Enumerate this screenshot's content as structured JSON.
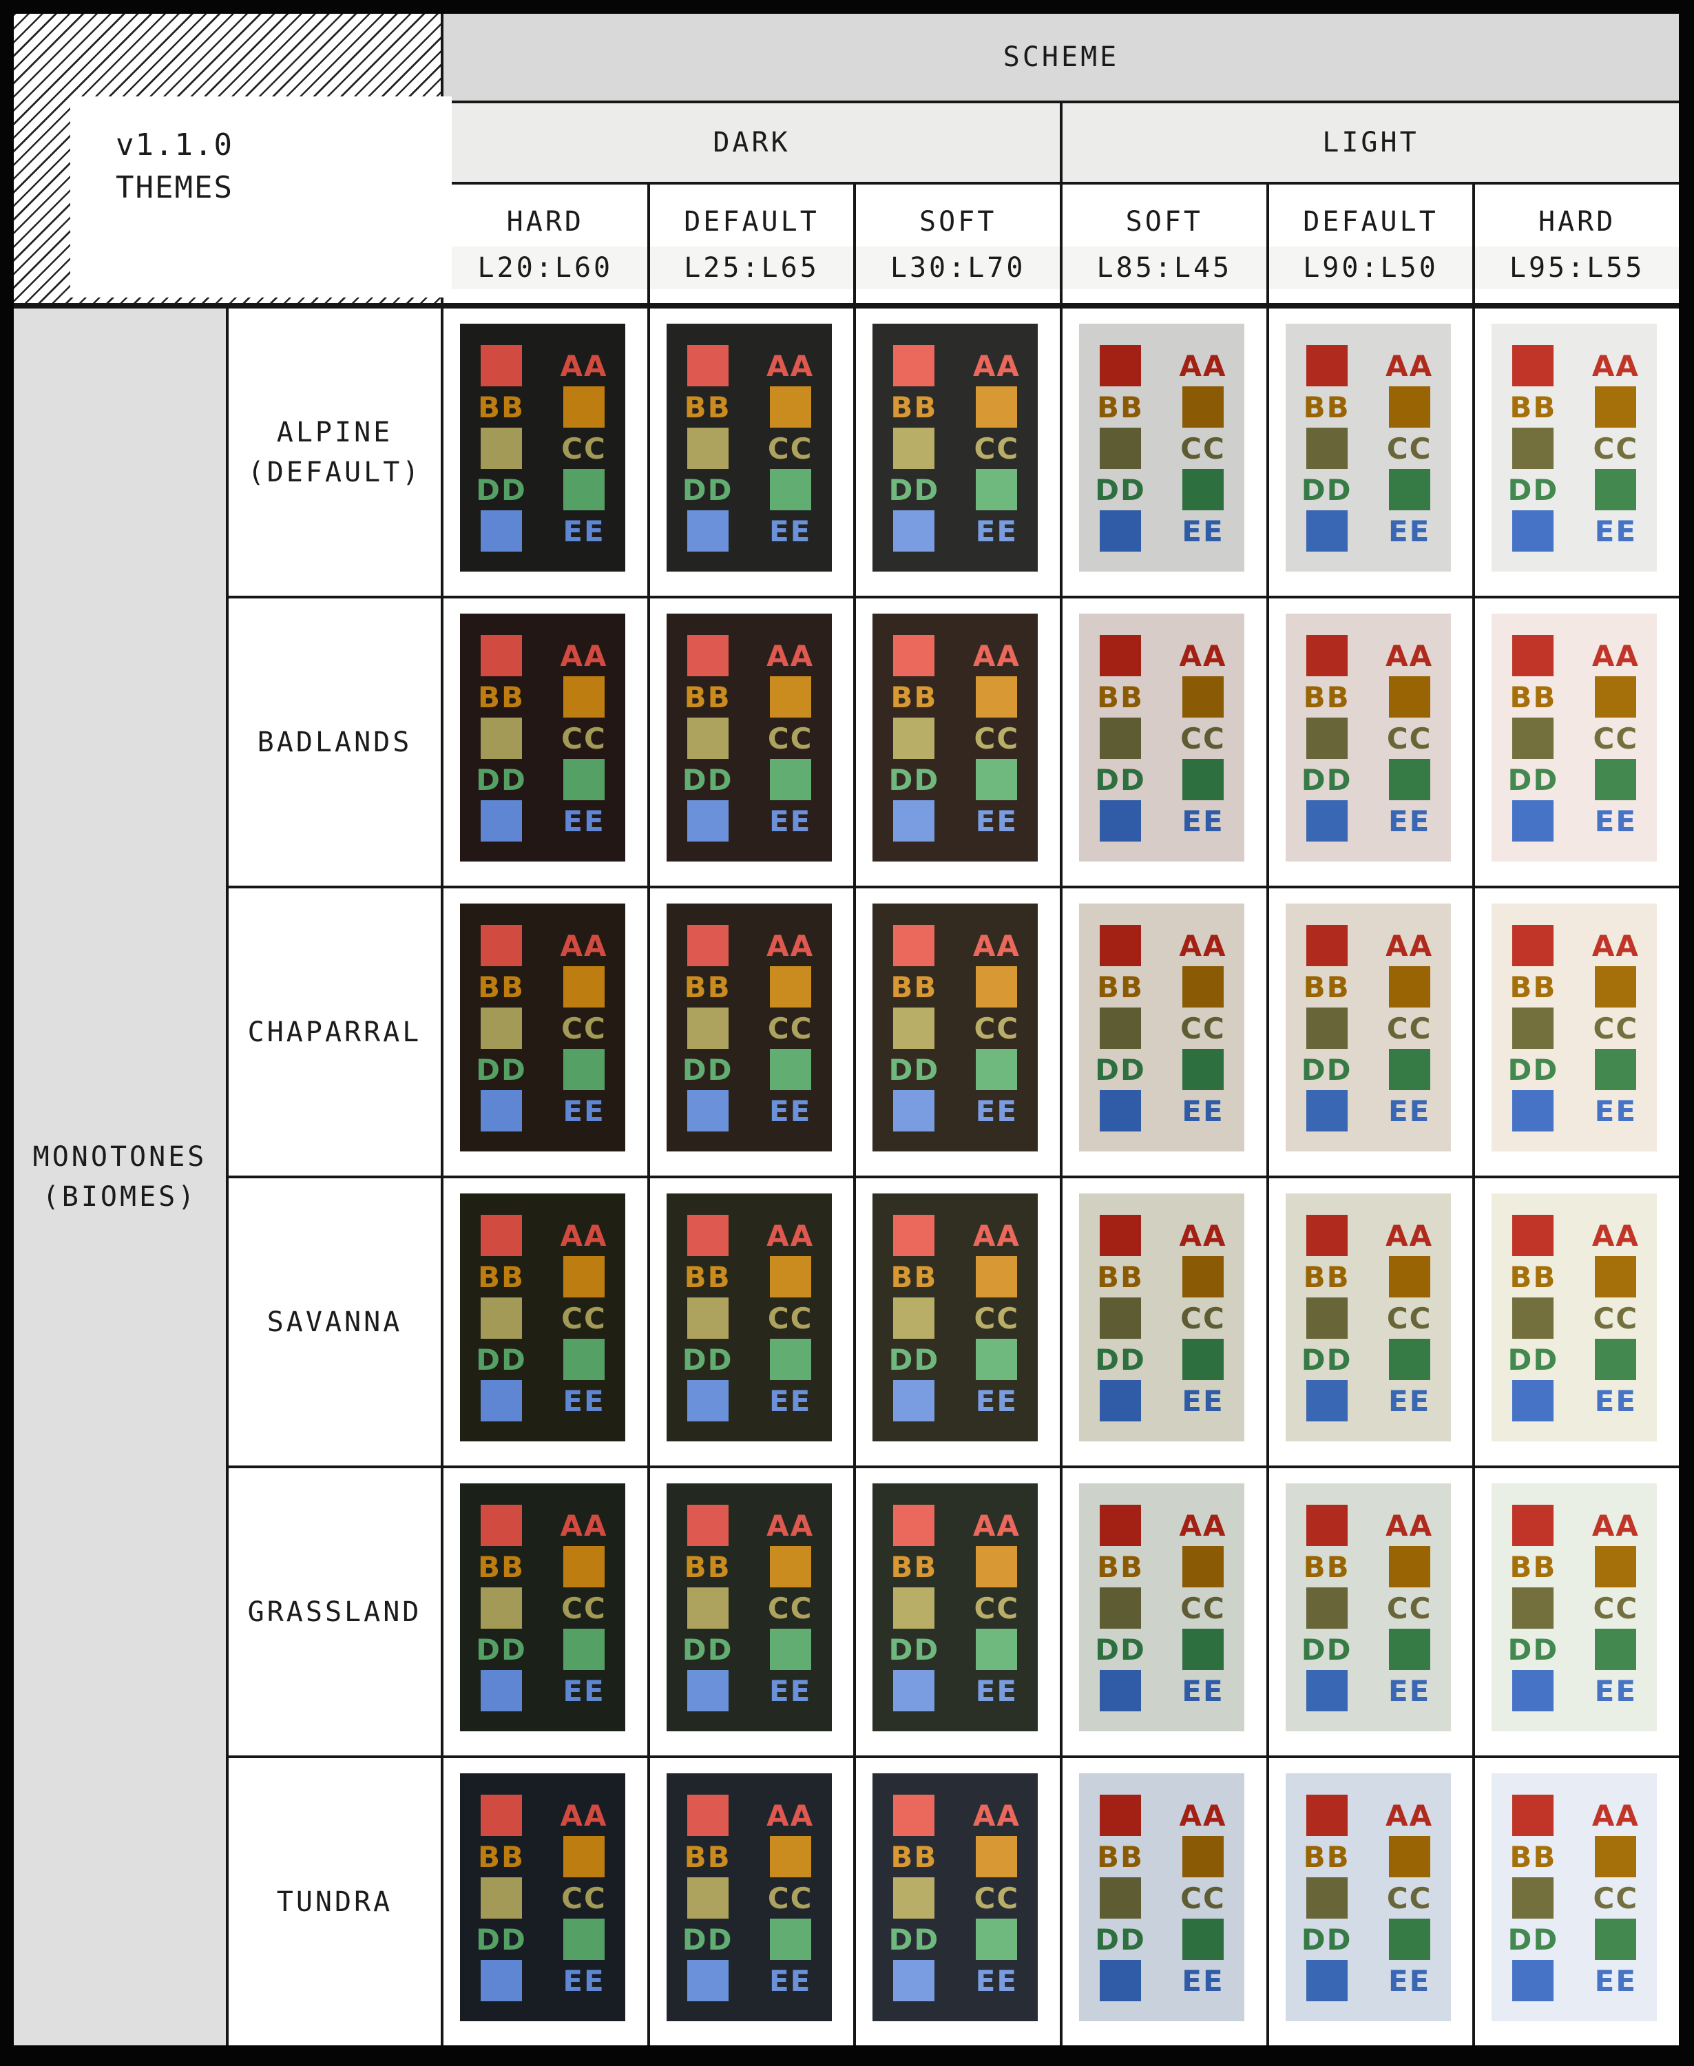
{
  "title_box": {
    "version": "v1.1.0",
    "label": "THEMES"
  },
  "header": {
    "scheme": "SCHEME",
    "groups": [
      {
        "label": "DARK"
      },
      {
        "label": "LIGHT"
      }
    ]
  },
  "columns": [
    {
      "group": "DARK",
      "name": "HARD",
      "spec": "L20:L60",
      "accents": [
        "#d24b41",
        "#bd7d10",
        "#a39a57",
        "#55a065",
        "#5e86d3"
      ]
    },
    {
      "group": "DARK",
      "name": "DEFAULT",
      "spec": "L25:L65",
      "accents": [
        "#de594f",
        "#ca8b1f",
        "#ada35f",
        "#62ad71",
        "#6b91da"
      ]
    },
    {
      "group": "DARK",
      "name": "SOFT",
      "spec": "L30:L70",
      "accents": [
        "#ea685c",
        "#d89833",
        "#b8ae68",
        "#70b97e",
        "#7a9de2"
      ]
    },
    {
      "group": "LIGHT",
      "name": "SOFT",
      "spec": "L85:L45",
      "accents": [
        "#a32015",
        "#8b5a04",
        "#5d5c33",
        "#2d6f3e",
        "#2f5ba7"
      ]
    },
    {
      "group": "LIGHT",
      "name": "DEFAULT",
      "spec": "L90:L50",
      "accents": [
        "#b02b1d",
        "#986404",
        "#686538",
        "#367b45",
        "#3a67b4"
      ]
    },
    {
      "group": "LIGHT",
      "name": "HARD",
      "spec": "L95:L55",
      "accents": [
        "#c03527",
        "#a56f0a",
        "#73703e",
        "#42884f",
        "#4673c5"
      ]
    }
  ],
  "side_group": {
    "line1": "MONOTONES",
    "line2": "(BIOMES)"
  },
  "swatch_labels": [
    "AA",
    "BB",
    "CC",
    "DD",
    "EE"
  ],
  "rows": [
    {
      "name_lines": [
        "ALPINE",
        "(DEFAULT)"
      ],
      "backgrounds": [
        "#1b1b19",
        "#232321",
        "#2b2b29",
        "#cfcfcd",
        "#d9d9d7",
        "#ebebe9"
      ]
    },
    {
      "name_lines": [
        "BADLANDS"
      ],
      "backgrounds": [
        "#221714",
        "#2a1f1a",
        "#332720",
        "#d7ccc7",
        "#e1d6d1",
        "#f3e8e3"
      ]
    },
    {
      "name_lines": [
        "CHAPARRAL"
      ],
      "backgrounds": [
        "#221a13",
        "#2a221a",
        "#332a20",
        "#d6cec3",
        "#e0d8cd",
        "#f2eade"
      ]
    },
    {
      "name_lines": [
        "SAVANNA"
      ],
      "backgrounds": [
        "#201f13",
        "#28271b",
        "#302f21",
        "#d2d1c1",
        "#dcdbcb",
        "#eeedde"
      ]
    },
    {
      "name_lines": [
        "GRASSLAND"
      ],
      "backgrounds": [
        "#1b2018",
        "#232820",
        "#2b3027",
        "#cdd3ca",
        "#d7ddd4",
        "#e9efe5"
      ]
    },
    {
      "name_lines": [
        "TUNDRA"
      ],
      "backgrounds": [
        "#181d24",
        "#20252c",
        "#282d35",
        "#c9d1dc",
        "#d3dbe6",
        "#e7ecf5"
      ]
    }
  ],
  "colors": {
    "frame": "#050505",
    "grid_line": "#161616",
    "scheme_band": "#d9d9d9",
    "group_band": "#ececeb",
    "spec_strip": "#f5f5f4",
    "side_band": "#dfdfdf",
    "cell_bg": "#ffffff",
    "text": "#1b1b1b"
  }
}
